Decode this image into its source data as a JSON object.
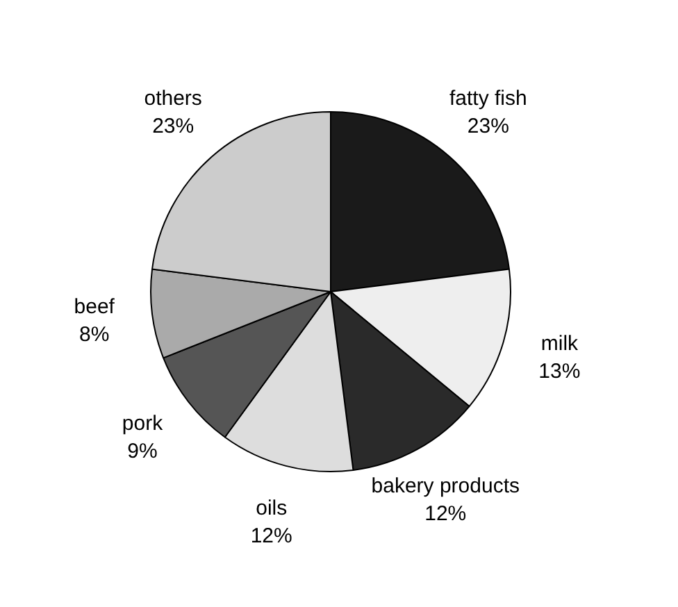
{
  "chart_data": {
    "type": "pie",
    "categories": [
      "fatty fish",
      "milk",
      "bakery products",
      "oils",
      "pork",
      "beef",
      "others"
    ],
    "values": [
      23,
      13,
      12,
      12,
      9,
      8,
      23
    ],
    "value_labels": [
      "23%",
      "13%",
      "12%",
      "12%",
      "9%",
      "8%",
      "23%"
    ],
    "colors": [
      "#1a1a1a",
      "#eeeeee",
      "#2a2a2a",
      "#dddddd",
      "#555555",
      "#aaaaaa",
      "#cccccc"
    ],
    "legend": false
  }
}
